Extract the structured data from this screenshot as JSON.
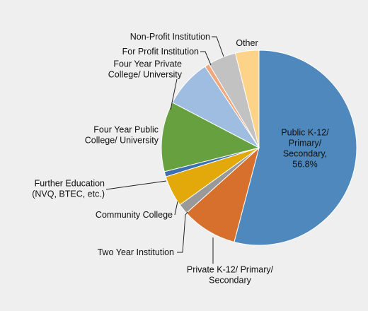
{
  "chart_data": {
    "type": "pie",
    "title": "",
    "legend": "none",
    "slices": [
      {
        "label": "Public K-12/ Primary/ Secondary",
        "value_label": "56.8%",
        "value": 56.8,
        "color": "#4f88bd"
      },
      {
        "label": "Private K-12/ Primary/ Secondary",
        "value": 9.7,
        "color": "#d8702d"
      },
      {
        "label": "Two Year Institution",
        "value": 1.8,
        "color": "#999999"
      },
      {
        "label": "Community College",
        "value": 5.4,
        "color": "#e3a90a"
      },
      {
        "label": "Further Education (NVQ, BTEC, etc.)",
        "value": 0.9,
        "color": "#3e6fb0"
      },
      {
        "label": "Four Year Public College/ University",
        "value": 12.2,
        "color": "#67a03f"
      },
      {
        "label": "Four Year Private College/ University",
        "value": 8.4,
        "color": "#9ebde0"
      },
      {
        "label": "For Profit Institution",
        "value": 0.8,
        "color": "#f0a77d"
      },
      {
        "label": "Non-Profit Institution",
        "value": 4.9,
        "color": "#c2c2c2"
      },
      {
        "label": "Other",
        "value": 4.1,
        "color": "#fdd38a"
      }
    ]
  }
}
